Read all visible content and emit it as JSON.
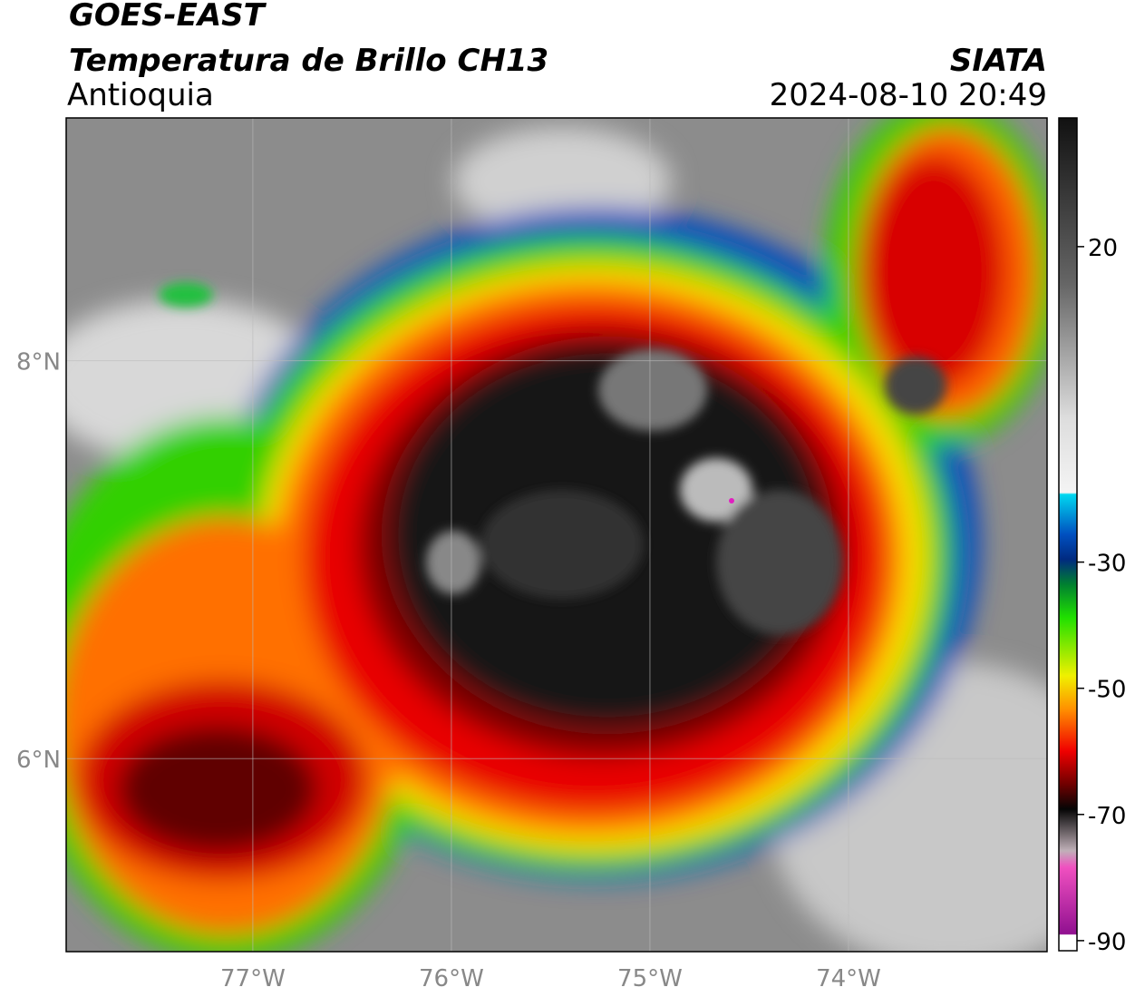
{
  "header": {
    "title": "GOES-EAST",
    "subtitle": "Temperatura de Brillo CH13",
    "region": "Antioquia",
    "source": "SIATA",
    "timestamp": "2024-08-10 20:49"
  },
  "map": {
    "xlim": [
      -77.94,
      -73.0
    ],
    "ylim": [
      5.03,
      9.22
    ],
    "xticks": [
      {
        "value": -77,
        "label": "77°W"
      },
      {
        "value": -76,
        "label": "76°W"
      },
      {
        "value": -75,
        "label": "75°W"
      },
      {
        "value": -74,
        "label": "74°W"
      }
    ],
    "yticks": [
      {
        "value": 8,
        "label": "8°N"
      },
      {
        "value": 6,
        "label": "6°N"
      }
    ],
    "grid": true
  },
  "colorbar": {
    "lim": [
      -91.6,
      40.4
    ],
    "ticks": [
      20,
      -30,
      -50,
      -70,
      -90
    ]
  }
}
